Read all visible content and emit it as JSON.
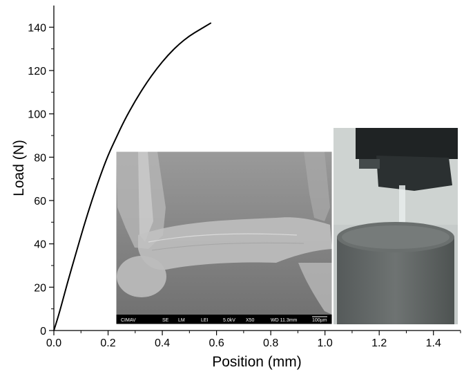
{
  "chart_data": {
    "type": "line",
    "xlabel": "Position (mm)",
    "ylabel": "Load (N)",
    "xlim": [
      0,
      1.5
    ],
    "ylim": [
      0,
      150
    ],
    "x_ticks": [
      0.0,
      0.2,
      0.4,
      0.6,
      0.8,
      1.0,
      1.2,
      1.4
    ],
    "x_tick_labels": [
      "0.0",
      "0.2",
      "0.4",
      "0.6",
      "0.8",
      "1.0",
      "1.2",
      "1.4"
    ],
    "y_ticks": [
      0,
      20,
      40,
      60,
      80,
      100,
      120,
      140
    ],
    "y_tick_labels": [
      "0",
      "20",
      "40",
      "60",
      "80",
      "100",
      "120",
      "140"
    ],
    "grid": false,
    "series": [
      {
        "color": "#000000",
        "x": [
          0.0,
          0.02,
          0.05,
          0.08,
          0.11,
          0.14,
          0.17,
          0.2,
          0.23,
          0.26,
          0.3,
          0.34,
          0.38,
          0.42,
          0.46,
          0.5,
          0.54,
          0.58
        ],
        "y": [
          0,
          8,
          22,
          35,
          48,
          60,
          71,
          81,
          89,
          97,
          106,
          114,
          121,
          127,
          132,
          136,
          139,
          142
        ]
      }
    ]
  },
  "insets": {
    "sem_image": {
      "scale_bar_text": [
        "CIMAV",
        "SE",
        "LM",
        "LEI",
        "5.0kV",
        "X50",
        "WD 11.3mm",
        "100µm"
      ]
    },
    "photo": {}
  },
  "colors": {
    "line": "#000000",
    "sem_background": "#8a8a8a",
    "photo_background": "#c9cfcd"
  }
}
